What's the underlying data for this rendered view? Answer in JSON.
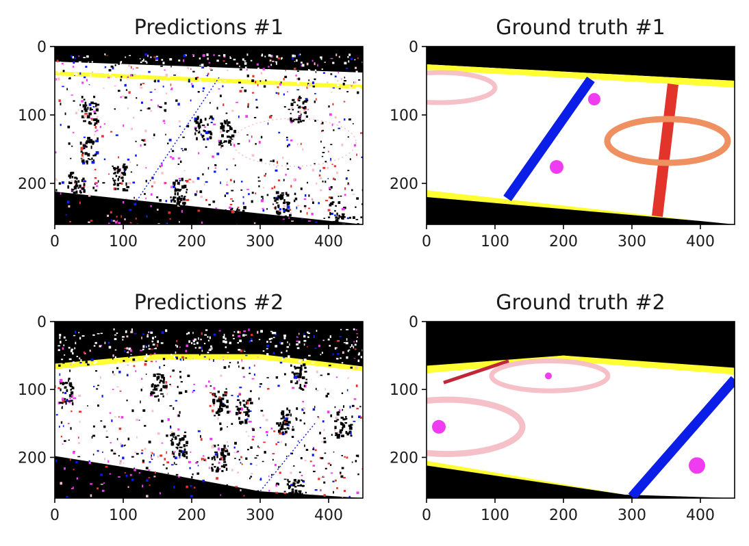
{
  "chart_data": [
    {
      "type": "image",
      "title": "Predictions #1",
      "xlim": [
        0,
        450
      ],
      "ylim": [
        0,
        260
      ],
      "y_inverted": true,
      "xticks": [
        0,
        100,
        200,
        300,
        400
      ],
      "yticks": [
        0,
        100,
        200
      ],
      "colors": {
        "background": "#ffffff",
        "black": "#000000",
        "yellow": "#ffff33",
        "blue": "#0a1ee8",
        "pink": "#f5c0c8",
        "red": "#e3342b",
        "magenta": "#f03cf0"
      },
      "regions": [
        {
          "kind": "band",
          "color": "black",
          "points": [
            [
              0,
              0
            ],
            [
              450,
              0
            ],
            [
              450,
              38
            ],
            [
              0,
              22
            ]
          ]
        },
        {
          "kind": "band",
          "color": "yellow",
          "points": [
            [
              0,
              36
            ],
            [
              450,
              56
            ],
            [
              450,
              62
            ],
            [
              0,
              42
            ]
          ]
        },
        {
          "kind": "band",
          "color": "black",
          "points": [
            [
              0,
              212
            ],
            [
              450,
              260
            ],
            [
              0,
              260
            ]
          ]
        }
      ]
    },
    {
      "type": "image",
      "title": "Ground truth #1",
      "xlim": [
        0,
        450
      ],
      "ylim": [
        0,
        260
      ],
      "y_inverted": true,
      "xticks": [
        0,
        100,
        200,
        300,
        400
      ],
      "yticks": [
        0,
        100,
        200
      ],
      "colors": {
        "background": "#ffffff",
        "black": "#000000",
        "yellow": "#ffff33",
        "blue": "#0a1ee8",
        "pink": "#f5c0c8",
        "orange": "#ef9060",
        "red": "#e3342b",
        "magenta": "#f03cf0"
      },
      "regions": [
        {
          "kind": "band",
          "color": "black",
          "points": [
            [
              0,
              0
            ],
            [
              450,
              0
            ],
            [
              450,
              50
            ],
            [
              0,
              26
            ]
          ]
        },
        {
          "kind": "band",
          "color": "yellow",
          "points": [
            [
              0,
              26
            ],
            [
              450,
              50
            ],
            [
              450,
              60
            ],
            [
              0,
              34
            ]
          ]
        },
        {
          "kind": "band",
          "color": "yellow",
          "points": [
            [
              0,
              210
            ],
            [
              400,
              255
            ],
            [
              0,
              225
            ]
          ]
        },
        {
          "kind": "band",
          "color": "black",
          "points": [
            [
              0,
              220
            ],
            [
              400,
              255
            ],
            [
              450,
              260
            ],
            [
              0,
              260
            ]
          ]
        },
        {
          "kind": "line",
          "color": "blue",
          "from": [
            240,
            48
          ],
          "to": [
            118,
            222
          ],
          "width": 14
        },
        {
          "kind": "line",
          "color": "red",
          "from": [
            360,
            55
          ],
          "to": [
            337,
            248
          ],
          "width": 16
        },
        {
          "kind": "ring",
          "color": "pink",
          "center": [
            20,
            60
          ],
          "radius": [
            80,
            22
          ],
          "width": 7
        },
        {
          "kind": "ring",
          "color": "orange",
          "center": [
            352,
            138
          ],
          "radius": [
            88,
            32
          ],
          "width": 9
        },
        {
          "kind": "dot",
          "color": "magenta",
          "center": [
            245,
            77
          ],
          "radius": 9
        },
        {
          "kind": "dot",
          "color": "magenta",
          "center": [
            190,
            176
          ],
          "radius": 10
        }
      ]
    },
    {
      "type": "image",
      "title": "Predictions #2",
      "xlim": [
        0,
        450
      ],
      "ylim": [
        0,
        260
      ],
      "y_inverted": true,
      "xticks": [
        0,
        100,
        200,
        300,
        400
      ],
      "yticks": [
        0,
        100,
        200
      ],
      "colors": {
        "background": "#ffffff",
        "black": "#000000",
        "yellow": "#ffff33",
        "blue": "#0a1ee8",
        "pink": "#f5c0c8",
        "red": "#e3342b",
        "magenta": "#f03cf0"
      },
      "regions": [
        {
          "kind": "band",
          "color": "black",
          "points": [
            [
              0,
              0
            ],
            [
              450,
              0
            ],
            [
              450,
              68
            ],
            [
              300,
              50
            ],
            [
              150,
              50
            ],
            [
              0,
              65
            ]
          ]
        },
        {
          "kind": "band",
          "color": "yellow",
          "points": [
            [
              0,
              62
            ],
            [
              150,
              48
            ],
            [
              300,
              48
            ],
            [
              450,
              66
            ],
            [
              450,
              73
            ],
            [
              300,
              56
            ],
            [
              150,
              56
            ],
            [
              0,
              70
            ]
          ]
        },
        {
          "kind": "band",
          "color": "black",
          "points": [
            [
              0,
              198
            ],
            [
              150,
              222
            ],
            [
              300,
              250
            ],
            [
              450,
              260
            ],
            [
              0,
              260
            ]
          ]
        }
      ]
    },
    {
      "type": "image",
      "title": "Ground truth #2",
      "xlim": [
        0,
        450
      ],
      "ylim": [
        0,
        260
      ],
      "y_inverted": true,
      "xticks": [
        0,
        100,
        200,
        300,
        400
      ],
      "yticks": [
        0,
        100,
        200
      ],
      "colors": {
        "background": "#ffffff",
        "black": "#000000",
        "yellow": "#ffff33",
        "blue": "#0a1ee8",
        "pink": "#f5c0c8",
        "red": "#c0283a",
        "magenta": "#f03cf0"
      },
      "regions": [
        {
          "kind": "band",
          "color": "black",
          "points": [
            [
              0,
              0
            ],
            [
              450,
              0
            ],
            [
              450,
              75
            ],
            [
              200,
              50
            ],
            [
              0,
              70
            ]
          ]
        },
        {
          "kind": "band",
          "color": "yellow",
          "points": [
            [
              0,
              65
            ],
            [
              200,
              50
            ],
            [
              450,
              68
            ],
            [
              450,
              78
            ],
            [
              200,
              58
            ],
            [
              0,
              76
            ]
          ]
        },
        {
          "kind": "band",
          "color": "yellow",
          "points": [
            [
              0,
              205
            ],
            [
              290,
              255
            ],
            [
              0,
              215
            ]
          ]
        },
        {
          "kind": "band",
          "color": "black",
          "points": [
            [
              0,
              212
            ],
            [
              290,
              255
            ],
            [
              450,
              260
            ],
            [
              0,
              260
            ]
          ]
        },
        {
          "kind": "line",
          "color": "blue",
          "from": [
            450,
            85
          ],
          "to": [
            300,
            258
          ],
          "width": 14
        },
        {
          "kind": "line",
          "color": "red",
          "from": [
            25,
            90
          ],
          "to": [
            120,
            58
          ],
          "width": 5
        },
        {
          "kind": "ring",
          "color": "pink",
          "center": [
            180,
            80
          ],
          "radius": [
            85,
            22
          ],
          "width": 7
        },
        {
          "kind": "ring",
          "color": "pink",
          "center": [
            30,
            155
          ],
          "radius": [
            110,
            40
          ],
          "width": 9
        },
        {
          "kind": "dot",
          "color": "magenta",
          "center": [
            178,
            80
          ],
          "radius": 5
        },
        {
          "kind": "dot",
          "color": "magenta",
          "center": [
            18,
            155
          ],
          "radius": 10
        },
        {
          "kind": "dot",
          "color": "magenta",
          "center": [
            395,
            212
          ],
          "radius": 12
        }
      ]
    }
  ]
}
